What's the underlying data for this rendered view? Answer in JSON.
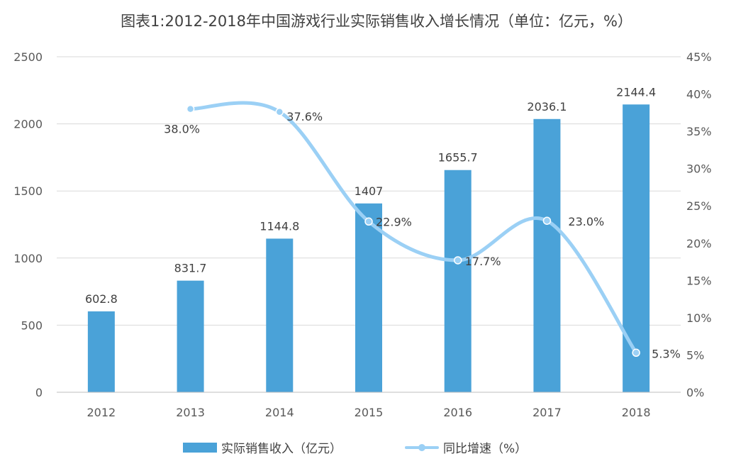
{
  "chart_data": {
    "type": "bar",
    "title": "图表1:2012-2018年中国游戏行业实际销售收入增长情况（单位：亿元，%）",
    "categories": [
      "2012",
      "2013",
      "2014",
      "2015",
      "2016",
      "2017",
      "2018"
    ],
    "series": [
      {
        "name": "实际销售收入（亿元）",
        "type": "bar",
        "axis": "left",
        "color": "#4aa2d8",
        "values": [
          602.8,
          831.7,
          1144.8,
          1407,
          1655.7,
          2036.1,
          2144.4
        ],
        "labels": [
          "602.8",
          "831.7",
          "1144.8",
          "1407",
          "1655.7",
          "2036.1",
          "2144.4"
        ]
      },
      {
        "name": "同比增速（%）",
        "type": "line",
        "axis": "right",
        "color": "#9bd0f5",
        "values": [
          null,
          38.0,
          37.6,
          22.9,
          17.7,
          23.0,
          5.3
        ],
        "labels": [
          "",
          "38.0%",
          "37.6%",
          "22.9%",
          "17.7%",
          "23.0%",
          "5.3%"
        ]
      }
    ],
    "y_left": {
      "lim": [
        0,
        2500
      ],
      "ticks": [
        0,
        500,
        1000,
        1500,
        2000,
        2500
      ],
      "tick_labels": [
        "0",
        "500",
        "1000",
        "1500",
        "2000",
        "2500"
      ]
    },
    "y_right": {
      "lim": [
        0,
        45
      ],
      "ticks": [
        0,
        5,
        10,
        15,
        20,
        25,
        30,
        35,
        40,
        45
      ],
      "tick_labels": [
        "0%",
        "5%",
        "10%",
        "15%",
        "20%",
        "25%",
        "30%",
        "35%",
        "40%",
        "45%"
      ]
    },
    "xlabel": "",
    "ylabel": "",
    "grid": true,
    "legend_position": "bottom-center"
  }
}
